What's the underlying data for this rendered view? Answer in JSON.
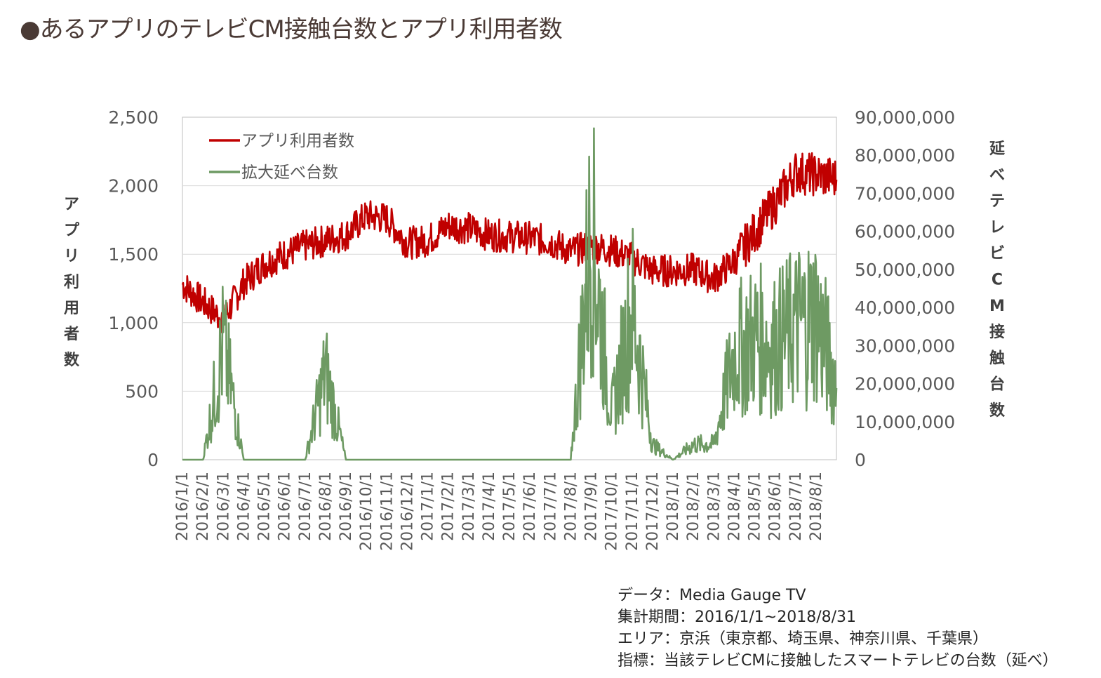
{
  "title": "●あるアプリのテレビCM接触台数とアプリ利用者数",
  "notes": [
    "データ：Media Gauge TV",
    "集計期間：2016/1/1~2018/8/31",
    "エリア：京浜（東京都、埼玉県、神奈川県、千葉県）",
    "指標：当該テレビCMに接触したスマートテレビの台数（延べ）"
  ],
  "colors": {
    "users": "#c00000",
    "cm": "#6e9a63",
    "grid": "#d9d9d9",
    "axis": "#bfbfbf"
  },
  "chart_data": {
    "type": "line",
    "title": "",
    "x": [
      "2016/1/1",
      "2016/2/1",
      "2016/3/1",
      "2016/4/1",
      "2016/5/1",
      "2016/6/1",
      "2016/7/1",
      "2016/8/1",
      "2016/9/1",
      "2016/10/1",
      "2016/11/1",
      "2016/12/1",
      "2017/1/1",
      "2017/2/1",
      "2017/3/1",
      "2017/4/1",
      "2017/5/1",
      "2017/6/1",
      "2017/7/1",
      "2017/8/1",
      "2017/9/1",
      "2017/10/1",
      "2017/11/1",
      "2017/12/1",
      "2018/1/1",
      "2018/2/1",
      "2018/3/1",
      "2018/4/1",
      "2018/5/1",
      "2018/6/1",
      "2018/7/1",
      "2018/8/1",
      "2018/8/31"
    ],
    "x_tick_labels": [
      "2016/1/1",
      "2016/2/1",
      "2016/3/1",
      "2016/4/1",
      "2016/5/1",
      "2016/6/1",
      "2016/7/1",
      "2016/8/1",
      "2016/9/1",
      "2016/10/1",
      "2016/11/1",
      "2016/12/1",
      "2017/1/1",
      "2017/2/1",
      "2017/3/1",
      "2017/4/1",
      "2017/5/1",
      "2017/6/1",
      "2017/7/1",
      "2017/8/1",
      "2017/9/1",
      "2017/10/1",
      "2017/11/1",
      "2017/12/1",
      "2018/1/1",
      "2018/2/1",
      "2018/3/1",
      "2018/4/1",
      "2018/5/1",
      "2018/6/1",
      "2018/7/1",
      "2018/8/1"
    ],
    "y_left": {
      "label": "アプリ利用者数",
      "range": [
        0,
        2500
      ],
      "ticks": [
        "0",
        "500",
        "1,000",
        "1,500",
        "2,000",
        "2,500"
      ],
      "tick_values": [
        0,
        500,
        1000,
        1500,
        2000,
        2500
      ]
    },
    "y_right": {
      "label": "延べテレビCM接触台数",
      "range": [
        0,
        90000000
      ],
      "ticks": [
        "0",
        "10,000,000",
        "20,000,000",
        "30,000,000",
        "40,000,000",
        "50,000,000",
        "60,000,000",
        "70,000,000",
        "80,000,000",
        "90,000,000"
      ],
      "tick_values": [
        0,
        10000000,
        20000000,
        30000000,
        40000000,
        50000000,
        60000000,
        70000000,
        80000000,
        90000000
      ]
    },
    "grid": "horizontal",
    "legend_position": "top-left",
    "series": [
      {
        "name": "アプリ利用者数",
        "axis": "left",
        "values": [
          1280,
          1150,
          1020,
          1290,
          1430,
          1500,
          1560,
          1600,
          1640,
          1780,
          1760,
          1580,
          1600,
          1710,
          1690,
          1640,
          1630,
          1620,
          1590,
          1520,
          1560,
          1530,
          1470,
          1380,
          1380,
          1390,
          1320,
          1450,
          1660,
          1870,
          2100,
          2080,
          2050
        ]
      },
      {
        "name": "拡大延べ台数",
        "axis": "right",
        "values": [
          0,
          0,
          30000000,
          0,
          0,
          0,
          0,
          23000000,
          0,
          0,
          0,
          0,
          0,
          0,
          0,
          0,
          0,
          0,
          0,
          0,
          60000000,
          12000000,
          40000000,
          4000000,
          0,
          4000000,
          4000000,
          28000000,
          32000000,
          30000000,
          35000000,
          38000000,
          20000000
        ]
      }
    ]
  }
}
